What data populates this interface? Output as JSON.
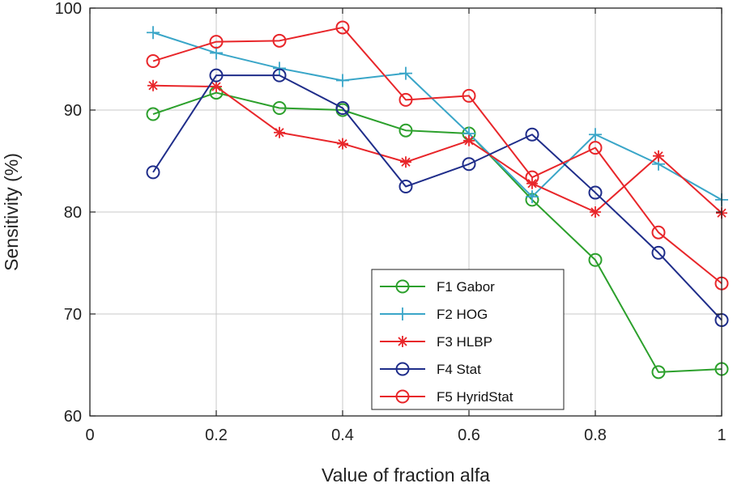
{
  "chart_data": {
    "type": "line",
    "title": "",
    "xlabel": "Value of fraction alfa",
    "ylabel": "Sensitivity (%)",
    "xlim": [
      0,
      1
    ],
    "ylim": [
      60,
      100
    ],
    "grid": true,
    "legend_position": "bottom-right",
    "xticks": [
      0,
      0.2,
      0.4,
      0.6,
      0.8,
      1
    ],
    "xtick_labels": [
      "0",
      "0.2",
      "0.4",
      "0.6",
      "0.8",
      "1"
    ],
    "yticks": [
      60,
      70,
      80,
      90,
      100
    ],
    "ytick_labels": [
      "60",
      "70",
      "80",
      "90",
      "100"
    ],
    "x": [
      0.1,
      0.2,
      0.3,
      0.4,
      0.5,
      0.6,
      0.7,
      0.8,
      0.9,
      1.0
    ],
    "series": [
      {
        "name": "F1 Gabor",
        "color": "#2ca02c",
        "marker": "circle",
        "values": [
          89.6,
          91.7,
          90.2,
          90.0,
          88.0,
          87.7,
          81.2,
          75.3,
          64.3,
          64.6
        ]
      },
      {
        "name": "F2 HOG",
        "color": "#3aa6c8",
        "marker": "plus",
        "values": [
          97.6,
          95.6,
          94.1,
          92.9,
          93.6,
          87.7,
          81.5,
          87.6,
          84.7,
          81.2
        ]
      },
      {
        "name": "F3 HLBP",
        "color": "#e8262a",
        "marker": "star",
        "values": [
          92.4,
          92.3,
          87.8,
          86.7,
          84.9,
          87.0,
          82.8,
          80.0,
          85.5,
          79.9
        ]
      },
      {
        "name": "F4 Stat",
        "color": "#1f2d8a",
        "marker": "circle",
        "values": [
          83.9,
          93.4,
          93.4,
          90.2,
          82.5,
          84.7,
          87.6,
          81.9,
          76.0,
          69.4
        ]
      },
      {
        "name": "F5 HyridStat",
        "color": "#e8262a",
        "marker": "circle",
        "values": [
          94.8,
          96.7,
          96.8,
          98.1,
          91.0,
          91.4,
          83.4,
          86.3,
          78.0,
          73.0
        ]
      }
    ]
  }
}
